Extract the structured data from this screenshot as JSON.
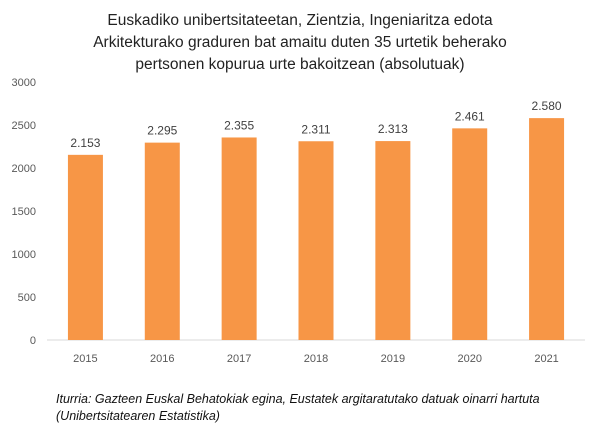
{
  "chart_data": {
    "type": "bar",
    "title": [
      "Euskadiko unibertsitateetan, Zientzia, Ingeniaritza edota",
      "Arkitekturako graduren bat amaitu duten 35 urtetik beherako",
      "pertsonen kopurua urte bakoitzean (absolutuak)"
    ],
    "categories": [
      "2015",
      "2016",
      "2017",
      "2018",
      "2019",
      "2020",
      "2021"
    ],
    "values": [
      2153,
      2295,
      2355,
      2311,
      2313,
      2461,
      2580
    ],
    "data_labels": [
      "2.153",
      "2.295",
      "2.355",
      "2.311",
      "2.313",
      "2.461",
      "2.580"
    ],
    "xlabel": "",
    "ylabel": "",
    "ylim": [
      0,
      3000
    ],
    "yticks": [
      "0",
      "500",
      "1000",
      "1500",
      "2000",
      "2500",
      "3000"
    ],
    "grid": false,
    "bar_color": "#F79646",
    "source": [
      "Iturria: Gazteen Euskal Behatokiak egina, Eustatek argitaratutako datuak oinarri hartuta",
      "(Unibertsitatearen Estatistika)"
    ]
  }
}
